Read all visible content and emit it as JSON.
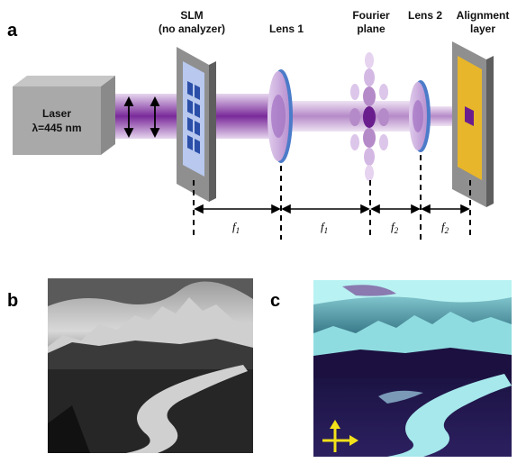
{
  "panels": {
    "a": "a",
    "b": "b",
    "c": "c"
  },
  "labels": {
    "slm_line1": "SLM",
    "slm_line2": "(no analyzer)",
    "lens1": "Lens 1",
    "fourier_line1": "Fourier",
    "fourier_line2": "plane",
    "lens2": "Lens 2",
    "align_line1": "Alignment",
    "align_line2": "layer",
    "laser_line1": "Laser",
    "laser_line2": "λ=445 nm"
  },
  "focal": {
    "f1a": "f",
    "f1a_sub": "1",
    "f1b": "f",
    "f1b_sub": "1",
    "f2a": "f",
    "f2a_sub": "2",
    "f2b": "f",
    "f2b_sub": "2"
  },
  "colors": {
    "beam": "#7a2a9a",
    "lens": "#c9a7dc",
    "lens_rim": "#4b7bc9",
    "slm_frame": "#8f8f8f",
    "slm_screen": "#b8c8ee",
    "slm_pixel": "#2b4fa8",
    "alignment_layer": "#e8b62a",
    "laser_box": "#a9a9a9"
  }
}
